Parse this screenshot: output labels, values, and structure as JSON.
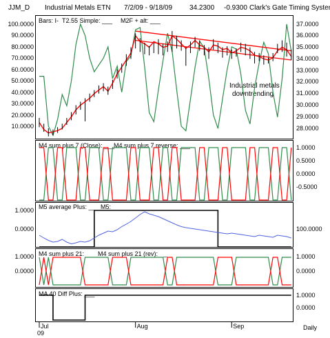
{
  "header": {
    "symbol": "JJM_D",
    "name": "Industrial Metals ETN",
    "dates": "7/2/09 - 9/18/09",
    "last": "34.2300",
    "change": "-0.9300",
    "system": "Clark's Gate Timing System ©"
  },
  "colors": {
    "price_line": "#ff0000",
    "oscillator_green": "#2e8b4a",
    "oscillator_red": "#ff0000",
    "average_blue": "#4d63e0",
    "step_black": "#000000",
    "trend_line": "#ff0000"
  },
  "chart_data": [
    {
      "panel": "price",
      "type": "line",
      "legend": [
        "Bars: I-",
        "T2.55 Simple: ___",
        "M2F + alt: ___"
      ],
      "left_axis_ticks": [
        "100.0000",
        "90.0000",
        "80.0000",
        "70.0000",
        "60.0000",
        "50.0000",
        "40.0000",
        "30.0000",
        "20.0000",
        "10.0000"
      ],
      "left_ylim": [
        0,
        100
      ],
      "right_axis_ticks": [
        "37.0000",
        "36.0000",
        "35.0000",
        "34.0000",
        "33.0000",
        "32.0000",
        "31.0000",
        "30.0000",
        "29.0000",
        "28.0000"
      ],
      "right_ylim": [
        27.15,
        37.2
      ],
      "x": [
        0,
        1,
        2,
        3,
        4,
        5,
        6,
        7,
        8,
        9,
        10,
        11,
        12,
        13,
        14,
        15,
        16,
        17,
        18,
        19,
        20,
        21,
        22,
        23,
        24,
        25,
        26,
        27,
        28,
        29,
        30,
        31,
        32,
        33,
        34,
        35,
        36,
        37,
        38,
        39,
        40,
        41,
        42,
        43,
        44,
        45,
        46,
        47,
        48,
        49,
        50,
        51,
        52,
        53,
        54,
        55
      ],
      "bars": [
        {
          "x": 0,
          "high": 28.9,
          "low": 28.1
        },
        {
          "x": 1,
          "high": 28.4,
          "low": 27.7
        },
        {
          "x": 2,
          "high": 28.0,
          "low": 27.3
        },
        {
          "x": 3,
          "high": 27.9,
          "low": 27.4
        },
        {
          "x": 4,
          "high": 28.1,
          "low": 27.6
        },
        {
          "x": 5,
          "high": 28.4,
          "low": 27.9
        },
        {
          "x": 6,
          "high": 28.9,
          "low": 28.3
        },
        {
          "x": 7,
          "high": 29.4,
          "low": 28.7
        },
        {
          "x": 8,
          "high": 30.0,
          "low": 29.2
        },
        {
          "x": 9,
          "high": 30.3,
          "low": 29.6
        },
        {
          "x": 10,
          "high": 30.6,
          "low": 28.6
        },
        {
          "x": 11,
          "high": 31.0,
          "low": 30.3
        },
        {
          "x": 12,
          "high": 31.3,
          "low": 30.7
        },
        {
          "x": 13,
          "high": 31.7,
          "low": 31.0
        },
        {
          "x": 14,
          "high": 31.9,
          "low": 31.2
        },
        {
          "x": 15,
          "high": 31.6,
          "low": 30.9
        },
        {
          "x": 16,
          "high": 32.2,
          "low": 31.4
        },
        {
          "x": 17,
          "high": 33.1,
          "low": 32.3
        },
        {
          "x": 18,
          "high": 33.6,
          "low": 32.8
        },
        {
          "x": 19,
          "high": 34.4,
          "low": 33.4
        },
        {
          "x": 20,
          "high": 35.0,
          "low": 34.0
        },
        {
          "x": 21,
          "high": 36.2,
          "low": 34.9
        },
        {
          "x": 22,
          "high": 35.8,
          "low": 34.6
        },
        {
          "x": 23,
          "high": 35.4,
          "low": 34.4
        },
        {
          "x": 24,
          "high": 35.1,
          "low": 34.3
        },
        {
          "x": 25,
          "high": 35.4,
          "low": 34.5
        },
        {
          "x": 26,
          "high": 35.7,
          "low": 34.4
        },
        {
          "x": 27,
          "high": 35.3,
          "low": 34.3
        },
        {
          "x": 28,
          "high": 35.5,
          "low": 34.6
        },
        {
          "x": 29,
          "high": 36.4,
          "low": 34.6
        },
        {
          "x": 30,
          "high": 36.0,
          "low": 34.9
        },
        {
          "x": 31,
          "high": 35.6,
          "low": 34.7
        },
        {
          "x": 32,
          "high": 35.0,
          "low": 33.4
        },
        {
          "x": 33,
          "high": 35.5,
          "low": 34.5
        },
        {
          "x": 34,
          "high": 35.9,
          "low": 35.0
        },
        {
          "x": 35,
          "high": 35.6,
          "low": 34.7
        },
        {
          "x": 36,
          "high": 35.2,
          "low": 34.3
        },
        {
          "x": 37,
          "high": 35.0,
          "low": 34.0
        },
        {
          "x": 38,
          "high": 35.7,
          "low": 34.8
        },
        {
          "x": 39,
          "high": 35.4,
          "low": 34.5
        },
        {
          "x": 40,
          "high": 35.0,
          "low": 34.1
        },
        {
          "x": 41,
          "high": 35.1,
          "low": 34.3
        },
        {
          "x": 42,
          "high": 34.8,
          "low": 34.0
        },
        {
          "x": 43,
          "high": 34.9,
          "low": 34.2
        },
        {
          "x": 44,
          "high": 35.4,
          "low": 34.6
        },
        {
          "x": 45,
          "high": 35.3,
          "low": 34.3
        },
        {
          "x": 46,
          "high": 35.0,
          "low": 34.0
        },
        {
          "x": 47,
          "high": 34.6,
          "low": 33.6
        },
        {
          "x": 48,
          "high": 34.5,
          "low": 33.8
        },
        {
          "x": 49,
          "high": 34.3,
          "low": 33.5
        },
        {
          "x": 50,
          "high": 34.1,
          "low": 33.6
        },
        {
          "x": 51,
          "high": 34.5,
          "low": 33.8
        },
        {
          "x": 52,
          "high": 35.3,
          "low": 34.5
        },
        {
          "x": 53,
          "high": 35.6,
          "low": 34.6
        },
        {
          "x": 54,
          "high": 35.4,
          "low": 34.2
        },
        {
          "x": 55,
          "high": 34.8,
          "low": 33.9
        }
      ],
      "price_path": [
        28.5,
        27.9,
        27.6,
        27.7,
        27.8,
        28.0,
        28.5,
        29.0,
        29.6,
        30.0,
        30.3,
        30.6,
        31.0,
        31.3,
        31.6,
        31.2,
        31.9,
        32.7,
        33.3,
        33.9,
        34.5,
        36.0,
        35.5,
        35.3,
        35.0,
        35.5,
        35.3,
        35.0,
        35.1,
        36.0,
        35.7,
        35.3,
        34.9,
        35.2,
        35.6,
        35.2,
        35.0,
        34.6,
        35.2,
        35.1,
        34.8,
        34.9,
        34.5,
        34.7,
        35.0,
        34.9,
        34.7,
        34.3,
        34.2,
        34.0,
        33.9,
        34.1,
        34.7,
        35.0,
        34.8,
        34.2
      ],
      "oscillator": [
        54,
        54,
        10,
        2,
        16,
        38,
        28,
        50,
        82,
        100,
        90,
        70,
        58,
        64,
        70,
        80,
        52,
        63,
        40,
        67,
        72,
        95,
        97,
        62,
        22,
        14,
        42,
        68,
        92,
        76,
        42,
        10,
        6,
        34,
        62,
        85,
        79,
        52,
        20,
        8,
        34,
        60,
        80,
        78,
        56,
        24,
        12,
        44,
        66,
        84,
        74,
        40,
        18,
        52,
        100,
        76
      ],
      "trend_upper": [
        {
          "x": 21,
          "y": 36.4
        },
        {
          "x": 55,
          "y": 34.7
        }
      ],
      "trend_lower": [
        {
          "x": 21,
          "y": 35.6
        },
        {
          "x": 55,
          "y": 33.9
        }
      ],
      "annotation": [
        "Industrial metals",
        "downtrending"
      ]
    },
    {
      "panel": "m4_sum_plus_7",
      "type": "line",
      "legend": [
        "M4 sum plus 7 (Close): ___",
        "M4 sum plus 7 reverse: ___"
      ],
      "right_axis_ticks": [
        "1.0000",
        "0.5000",
        "0.0000",
        "-0.5000"
      ],
      "ylim": [
        -1.05,
        1.05
      ],
      "green": [
        -1,
        -1,
        1,
        1,
        -1,
        -1,
        1,
        1,
        1,
        -1,
        -1,
        1,
        1,
        1,
        -1,
        -1,
        1,
        1,
        1,
        1,
        -1,
        -1,
        1,
        1,
        1,
        -1,
        -1,
        1,
        1,
        -1,
        -1,
        1,
        1,
        1,
        1,
        -1,
        -1,
        1,
        1,
        1,
        -1,
        -1,
        1,
        1,
        1,
        1,
        -1,
        -1,
        1,
        1,
        1,
        -1,
        -1,
        1,
        1,
        -1
      ],
      "red": [
        1,
        1,
        -1,
        -1,
        1,
        1,
        -1,
        -1,
        -1,
        1,
        1,
        -1,
        -1,
        -1,
        1,
        1,
        -1,
        -1,
        -1,
        -1,
        1,
        1,
        -1,
        -1,
        -1,
        1,
        1,
        -1,
        -1,
        1,
        1,
        -1,
        -1,
        -1,
        -1,
        1,
        1,
        -1,
        -1,
        -1,
        1,
        1,
        -1,
        -1,
        -1,
        -1,
        1,
        1,
        -1,
        -1,
        -1,
        1,
        1,
        -1,
        -1,
        1
      ]
    },
    {
      "panel": "m5_average",
      "type": "line",
      "legend": [
        "M5 average Plus: ___",
        "M5: ___"
      ],
      "left_axis_ticks": [
        "1.0000",
        "0.0000"
      ],
      "right_axis_ticks": [
        "100.0000"
      ],
      "step": [
        0,
        0,
        0,
        0,
        0,
        0,
        0,
        0,
        0,
        0,
        0,
        0,
        1,
        1,
        1,
        1,
        1,
        1,
        1,
        1,
        1,
        1,
        1,
        1,
        1,
        1,
        1,
        1,
        1,
        1,
        1,
        1,
        1,
        1,
        1,
        1,
        1,
        1,
        1,
        0,
        0,
        0,
        0,
        0,
        0,
        0,
        0,
        0,
        0,
        0,
        0,
        0,
        0,
        0,
        0,
        0
      ],
      "average": [
        0.3,
        0.22,
        0.15,
        0.1,
        0.12,
        0.18,
        0.1,
        0.05,
        0.08,
        0.12,
        0.1,
        0.14,
        0.22,
        0.3,
        0.36,
        0.42,
        0.4,
        0.46,
        0.55,
        0.62,
        0.7,
        0.8,
        0.9,
        0.98,
        0.92,
        0.88,
        0.84,
        0.78,
        0.72,
        0.66,
        0.6,
        0.55,
        0.52,
        0.5,
        0.48,
        0.46,
        0.44,
        0.42,
        0.4,
        0.38,
        0.36,
        0.34,
        0.36,
        0.34,
        0.32,
        0.3,
        0.28,
        0.26,
        0.3,
        0.28,
        0.26,
        0.24,
        0.3,
        0.28,
        0.26,
        0.22
      ]
    },
    {
      "panel": "m4_sum_plus_21",
      "type": "line",
      "legend": [
        "M4 sum plus 21: ___",
        "M4 sum plus 21 (rev): ___"
      ],
      "left_axis_ticks": [
        "1.0000",
        "0.0000"
      ],
      "right_axis_ticks": [
        "1.0000",
        "0.0000"
      ],
      "ylim": [
        -1.05,
        1.05
      ],
      "green": [
        1,
        -1,
        1,
        -1,
        -1,
        -1,
        -1,
        -1,
        -1,
        -1,
        1,
        1,
        1,
        1,
        1,
        1,
        -1,
        -1,
        -1,
        -1,
        1,
        1,
        1,
        1,
        1,
        1,
        1,
        1,
        -1,
        -1,
        1,
        1,
        1,
        1,
        1,
        1,
        1,
        1,
        1,
        -1,
        -1,
        -1,
        -1,
        1,
        1,
        1,
        1,
        1,
        1,
        1,
        1,
        -1,
        -1,
        1,
        1,
        1
      ],
      "red": [
        -1,
        1,
        -1,
        1,
        1,
        1,
        1,
        1,
        1,
        1,
        -1,
        -1,
        -1,
        -1,
        -1,
        -1,
        1,
        1,
        1,
        1,
        -1,
        -1,
        -1,
        -1,
        -1,
        -1,
        -1,
        -1,
        1,
        1,
        -1,
        -1,
        -1,
        -1,
        -1,
        -1,
        -1,
        -1,
        -1,
        1,
        1,
        1,
        1,
        -1,
        -1,
        -1,
        -1,
        -1,
        -1,
        -1,
        -1,
        1,
        1,
        -1,
        -1,
        -1
      ]
    },
    {
      "panel": "ma40_diff",
      "type": "line",
      "legend": [
        "MA 40 Diff Plus: ___"
      ],
      "right_axis_ticks": [
        "1.0000",
        "0.0000"
      ],
      "step": [
        1,
        1,
        1,
        0,
        0,
        0,
        0,
        0,
        0,
        0,
        1,
        1,
        1,
        1,
        1,
        1,
        1,
        1,
        1,
        1,
        1,
        1,
        1,
        1,
        1,
        1,
        1,
        1,
        1,
        1,
        1,
        1,
        1,
        1,
        1,
        1,
        1,
        1,
        1,
        1,
        1,
        1,
        1,
        1,
        1,
        1,
        1,
        1,
        1,
        1,
        1,
        1,
        1,
        1,
        1,
        1
      ]
    }
  ],
  "x_axis": {
    "labels": [
      {
        "text": "Jul",
        "x": 0
      },
      {
        "text": "Aug",
        "x": 21
      },
      {
        "text": "Sep",
        "x": 42
      }
    ],
    "year": "09",
    "period": "Daily"
  }
}
